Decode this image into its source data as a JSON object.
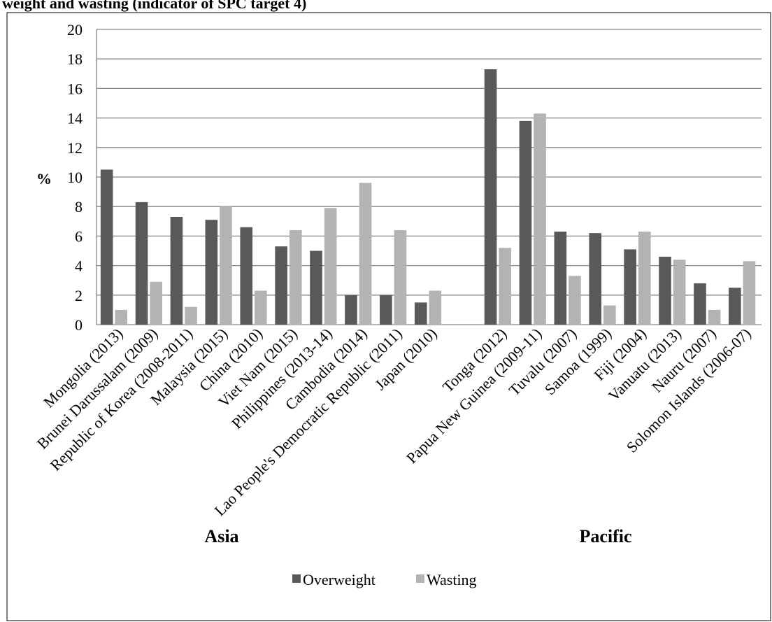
{
  "chart_data": {
    "type": "bar",
    "title": "weight and wasting (indicator of SPC target 4)",
    "ylabel": "%",
    "xlabel": "",
    "ylim": [
      0,
      20
    ],
    "yticks": [
      0,
      2,
      4,
      6,
      8,
      10,
      12,
      14,
      16,
      18,
      20
    ],
    "grid": true,
    "legend_position": "bottom",
    "groups": [
      {
        "name": "Asia",
        "categories": [
          "Mongolia (2013)",
          "Brunei Darussalam (2009)",
          "Republic of Korea (2008-2011)",
          "Malaysia (2015)",
          "China (2010)",
          "Viet Nam (2015)",
          "Philippines (2013-14)",
          "Cambodia (2014)",
          "Lao People's Democratic Republic (2011)",
          "Japan (2010)"
        ],
        "overweight": [
          10.5,
          8.3,
          7.3,
          7.1,
          6.6,
          5.3,
          5.0,
          2.0,
          2.0,
          1.5
        ],
        "wasting": [
          1.0,
          2.9,
          1.2,
          8.0,
          2.3,
          6.4,
          7.9,
          9.6,
          6.4,
          2.3
        ]
      },
      {
        "name": "Pacific",
        "categories": [
          "Tonga (2012)",
          "Papua New Guinea (2009-11)",
          "Tuvalu (2007)",
          "Samoa (1999)",
          "Fiji (2004)",
          "Vanuatu (2013)",
          "Nauru (2007)",
          "Solomon Islands (2006-07)"
        ],
        "overweight": [
          17.3,
          13.8,
          6.3,
          6.2,
          5.1,
          4.6,
          2.8,
          2.5
        ],
        "wasting": [
          5.2,
          14.3,
          3.3,
          1.3,
          6.3,
          4.4,
          1.0,
          4.3
        ]
      }
    ],
    "series": [
      {
        "name": "Overweight",
        "color": "#595959"
      },
      {
        "name": "Wasting",
        "color": "#b3b3b3"
      }
    ]
  }
}
